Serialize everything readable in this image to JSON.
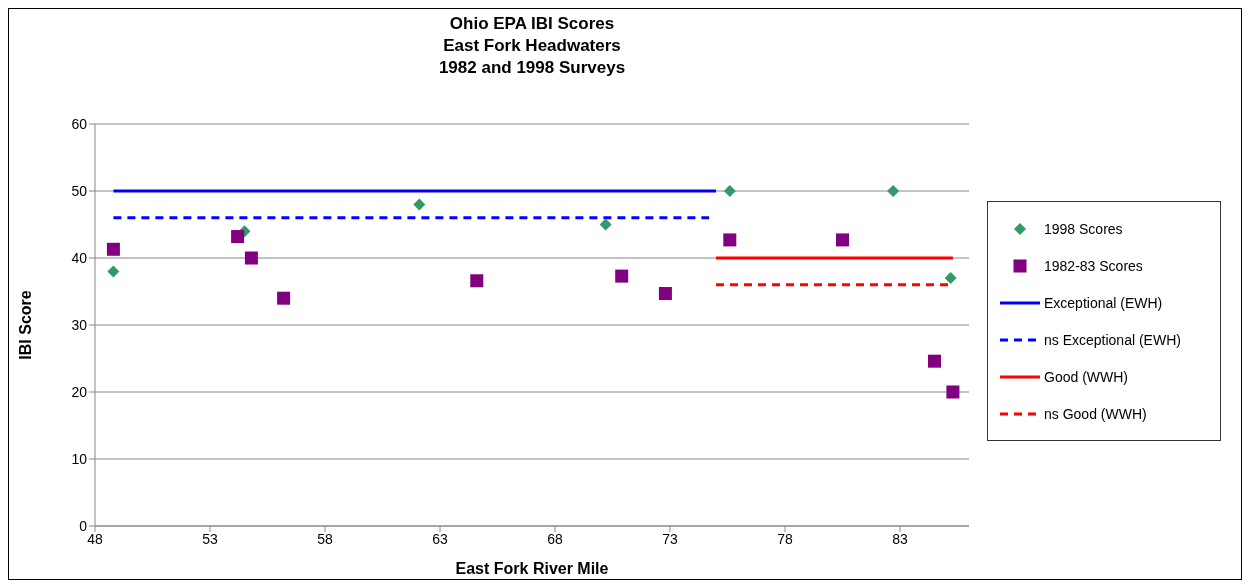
{
  "chart_data": {
    "type": "scatter",
    "title": "Ohio EPA IBI Scores",
    "subtitle": "East Fork Headwaters\n1982 and 1998 Surveys",
    "xlabel": "East Fork River Mile",
    "ylabel": "IBI Score",
    "xlim": [
      48,
      86
    ],
    "xticks": [
      48,
      53,
      58,
      63,
      68,
      73,
      78,
      83
    ],
    "ylim": [
      0,
      60
    ],
    "yticks": [
      0,
      10,
      20,
      30,
      40,
      50,
      60
    ],
    "grid": "y",
    "legend": "right",
    "series": [
      {
        "name": "1998 Scores",
        "marker": "diamond",
        "color": "#339966",
        "x": [
          48.8,
          54.5,
          62.1,
          70.2,
          75.6,
          82.7,
          85.2
        ],
        "values": [
          38,
          44,
          48,
          45,
          50,
          50,
          37
        ]
      },
      {
        "name": "1982-83 Scores",
        "marker": "square",
        "color": "#800080",
        "x": [
          48.8,
          54.2,
          54.8,
          56.2,
          64.6,
          70.9,
          72.8,
          75.6,
          80.5,
          84.5,
          85.3
        ],
        "values": [
          41.3,
          43.2,
          40,
          34,
          36.6,
          37.3,
          34.7,
          42.7,
          42.7,
          24.6,
          20
        ]
      },
      {
        "name": "Exceptional (EWH)",
        "type": "line",
        "line_style": "solid",
        "color": "#0000ff",
        "x": [
          48.8,
          75.0
        ],
        "values": [
          50,
          50
        ]
      },
      {
        "name": "ns Exceptional (EWH)",
        "type": "line",
        "line_style": "dashed",
        "color": "#0000ff",
        "x": [
          48.8,
          74.7
        ],
        "values": [
          46,
          46
        ]
      },
      {
        "name": "Good (WWH)",
        "type": "line",
        "line_style": "solid",
        "color": "#ff0000",
        "x": [
          75.0,
          85.3
        ],
        "values": [
          40,
          40
        ]
      },
      {
        "name": "ns Good (WWH)",
        "type": "line",
        "line_style": "dashed",
        "color": "#ff0000",
        "x": [
          75.0,
          85.2
        ],
        "values": [
          36,
          36
        ]
      }
    ]
  }
}
